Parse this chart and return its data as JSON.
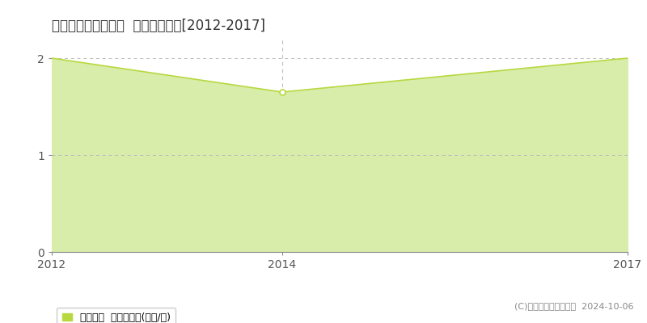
{
  "title": "東蒲原郡阿賀町鹿瀬  土地価格推移[2012-2017]",
  "years": [
    2012,
    2014,
    2017
  ],
  "values": [
    2.0,
    1.65,
    2.0
  ],
  "xlim": [
    2012,
    2017
  ],
  "ylim": [
    0,
    2.2
  ],
  "yticks": [
    0,
    1,
    2
  ],
  "xticks": [
    2012,
    2014,
    2017
  ],
  "line_color": "#b8d840",
  "fill_color": "#d8edaa",
  "marker_facecolor": "#ffffff",
  "marker_edgecolor": "#b8d840",
  "grid_color": "#bbbbbb",
  "background_color": "#ffffff",
  "plot_bg_color": "#f5f5f5",
  "legend_label": "土地価格  平均坪単価(万円/坪)",
  "copyright_text": "(C)土地価格ドットコム  2024-10-06",
  "vline_x": 2014,
  "vline_color": "#bbbbbb",
  "title_fontsize": 12,
  "tick_fontsize": 10,
  "legend_fontsize": 9,
  "copyright_fontsize": 8
}
